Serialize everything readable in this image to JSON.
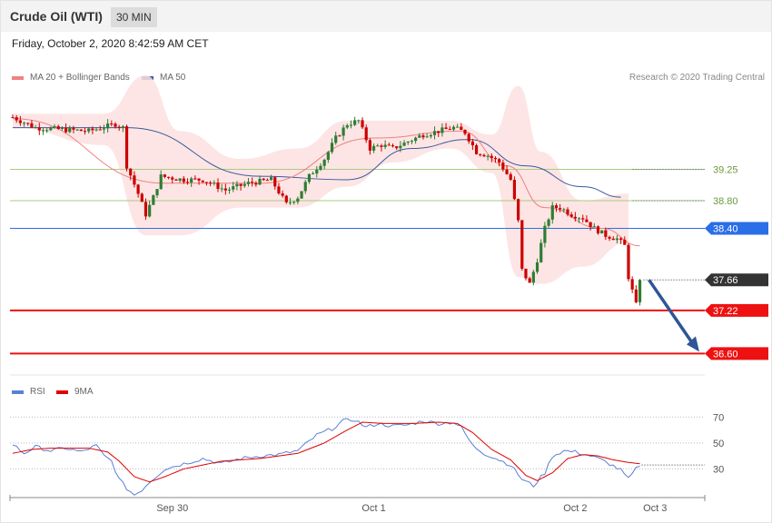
{
  "header": {
    "title": "Crude Oil (WTI)",
    "timeframe": "30 MIN"
  },
  "datetime": "Friday, October 2, 2020 8:42:59 AM CET",
  "legend": {
    "ma20": {
      "label": "MA 20 + Bollinger Bands",
      "color": "#f08080"
    },
    "ma50": {
      "label": "MA 50",
      "color": "#3a5a9c"
    },
    "credit": "Research © 2020 Trading Central"
  },
  "rsi_legend": {
    "rsi": {
      "label": "RSI",
      "color": "#5b7fd6"
    },
    "ma": {
      "label": "9MA",
      "color": "#e00000"
    }
  },
  "colors": {
    "up": "#2e7d32",
    "down": "#cc0000",
    "band": "#fde0e0",
    "arrow": "#2f5597"
  },
  "chart_data": [
    {
      "type": "candlestick",
      "title": "",
      "y_range": [
        36.33,
        40.38
      ],
      "x_ticks": [
        {
          "label": "Sep 30",
          "index": 42
        },
        {
          "label": "Oct 1",
          "index": 95
        },
        {
          "label": "Oct 2",
          "index": 148
        },
        {
          "label": "Oct 3",
          "index": 169
        }
      ],
      "levels": [
        {
          "label": "39.25",
          "value": 39.25,
          "kind": "resistance",
          "color": "#a8cc80",
          "lineWidth": 1
        },
        {
          "label": "38.80",
          "value": 38.8,
          "kind": "resistance",
          "color": "#a8cc80",
          "lineWidth": 1
        },
        {
          "label": "38.40",
          "value": 38.4,
          "kind": "pivot",
          "color": "#2a6ee8",
          "lineWidth": 1
        },
        {
          "label": "37.66",
          "value": 37.66,
          "kind": "last",
          "color": "#333333",
          "lineWidth": 0
        },
        {
          "label": "37.22",
          "value": 37.22,
          "kind": "support",
          "color": "#ee1111",
          "lineWidth": 2
        },
        {
          "label": "36.60",
          "value": 36.6,
          "kind": "support",
          "color": "#ee1111",
          "lineWidth": 2
        }
      ],
      "forecast_arrow": {
        "from_value": 37.66,
        "to_value": 36.6
      },
      "anchors": [
        [
          0,
          40.0
        ],
        [
          6,
          39.85
        ],
        [
          14,
          39.82
        ],
        [
          20,
          39.8
        ],
        [
          27,
          39.9
        ],
        [
          29,
          39.85
        ],
        [
          30,
          39.3
        ],
        [
          33,
          38.9
        ],
        [
          35,
          38.6
        ],
        [
          37,
          38.85
        ],
        [
          39,
          39.15
        ],
        [
          45,
          39.1
        ],
        [
          50,
          39.1
        ],
        [
          56,
          38.95
        ],
        [
          62,
          39.05
        ],
        [
          68,
          39.1
        ],
        [
          72,
          38.75
        ],
        [
          75,
          38.85
        ],
        [
          78,
          39.15
        ],
        [
          82,
          39.4
        ],
        [
          85,
          39.7
        ],
        [
          88,
          39.9
        ],
        [
          91,
          39.95
        ],
        [
          94,
          39.55
        ],
        [
          97,
          39.6
        ],
        [
          100,
          39.55
        ],
        [
          104,
          39.65
        ],
        [
          108,
          39.75
        ],
        [
          112,
          39.8
        ],
        [
          116,
          39.85
        ],
        [
          119,
          39.78
        ],
        [
          122,
          39.5
        ],
        [
          125,
          39.45
        ],
        [
          128,
          39.35
        ],
        [
          131,
          39.1
        ],
        [
          133,
          38.5
        ],
        [
          134,
          37.8
        ],
        [
          136,
          37.6
        ],
        [
          138,
          37.95
        ],
        [
          140,
          38.4
        ],
        [
          142,
          38.7
        ],
        [
          144,
          38.7
        ],
        [
          147,
          38.6
        ],
        [
          150,
          38.55
        ],
        [
          153,
          38.4
        ],
        [
          156,
          38.3
        ],
        [
          159,
          38.25
        ],
        [
          161,
          38.15
        ],
        [
          162,
          37.7
        ],
        [
          164,
          37.3
        ],
        [
          165,
          37.66
        ]
      ],
      "ma20": [
        [
          0,
          39.98
        ],
        [
          40,
          39.05
        ],
        [
          65,
          39.05
        ],
        [
          95,
          39.7
        ],
        [
          118,
          39.8
        ],
        [
          130,
          39.3
        ],
        [
          140,
          38.7
        ],
        [
          155,
          38.4
        ],
        [
          165,
          38.15
        ]
      ],
      "ma50": [
        [
          0,
          39.85
        ],
        [
          30,
          39.85
        ],
        [
          65,
          39.15
        ],
        [
          88,
          39.1
        ],
        [
          105,
          39.55
        ],
        [
          120,
          39.68
        ],
        [
          135,
          39.3
        ],
        [
          150,
          39.0
        ],
        [
          160,
          38.85
        ]
      ],
      "band_upper": [
        [
          0,
          40.05
        ],
        [
          24,
          40.05
        ],
        [
          35,
          40.6
        ],
        [
          44,
          39.8
        ],
        [
          60,
          39.4
        ],
        [
          75,
          39.55
        ],
        [
          88,
          39.95
        ],
        [
          100,
          39.95
        ],
        [
          115,
          39.95
        ],
        [
          126,
          39.75
        ],
        [
          133,
          40.45
        ],
        [
          139,
          39.5
        ],
        [
          150,
          38.8
        ],
        [
          162,
          38.9
        ]
      ],
      "band_lower": [
        [
          0,
          39.85
        ],
        [
          24,
          39.6
        ],
        [
          35,
          38.3
        ],
        [
          44,
          38.3
        ],
        [
          60,
          38.7
        ],
        [
          75,
          38.7
        ],
        [
          88,
          39.0
        ],
        [
          100,
          39.35
        ],
        [
          115,
          39.55
        ],
        [
          126,
          39.2
        ],
        [
          133,
          37.7
        ],
        [
          139,
          37.6
        ],
        [
          150,
          37.85
        ],
        [
          162,
          38.2
        ]
      ]
    },
    {
      "type": "line",
      "title": "RSI",
      "y_range": [
        10,
        80
      ],
      "y_ticks": [
        {
          "label": "70",
          "value": 70
        },
        {
          "label": "50",
          "value": 50
        },
        {
          "label": "30",
          "value": 30
        }
      ],
      "series": [
        {
          "name": "RSI",
          "color": "#5b7fd6",
          "anchors": [
            [
              0,
              49
            ],
            [
              3,
              42
            ],
            [
              6,
              47
            ],
            [
              10,
              44
            ],
            [
              14,
              46
            ],
            [
              18,
              43
            ],
            [
              22,
              48
            ],
            [
              24,
              40
            ],
            [
              26,
              36
            ],
            [
              28,
              22
            ],
            [
              30,
              15
            ],
            [
              32,
              10
            ],
            [
              34,
              14
            ],
            [
              36,
              20
            ],
            [
              40,
              30
            ],
            [
              45,
              34
            ],
            [
              50,
              38
            ],
            [
              55,
              34
            ],
            [
              60,
              38
            ],
            [
              65,
              40
            ],
            [
              70,
              41
            ],
            [
              75,
              44
            ],
            [
              80,
              56
            ],
            [
              84,
              61
            ],
            [
              87,
              67
            ],
            [
              90,
              68
            ],
            [
              93,
              62
            ],
            [
              96,
              65
            ],
            [
              100,
              63
            ],
            [
              104,
              64
            ],
            [
              108,
              67
            ],
            [
              112,
              65
            ],
            [
              116,
              66
            ],
            [
              118,
              62
            ],
            [
              121,
              48
            ],
            [
              124,
              42
            ],
            [
              128,
              37
            ],
            [
              131,
              33
            ],
            [
              134,
              22
            ],
            [
              137,
              17
            ],
            [
              140,
              27
            ],
            [
              142,
              40
            ],
            [
              145,
              44
            ],
            [
              148,
              43
            ],
            [
              151,
              41
            ],
            [
              154,
              38
            ],
            [
              157,
              34
            ],
            [
              160,
              29
            ],
            [
              162,
              22
            ],
            [
              164,
              30
            ],
            [
              165,
              33
            ]
          ]
        },
        {
          "name": "9MA",
          "color": "#e00000",
          "anchors": [
            [
              0,
              42
            ],
            [
              5,
              45
            ],
            [
              10,
              46
            ],
            [
              20,
              46
            ],
            [
              25,
              43
            ],
            [
              28,
              36
            ],
            [
              32,
              24
            ],
            [
              36,
              20
            ],
            [
              40,
              24
            ],
            [
              45,
              30
            ],
            [
              55,
              36
            ],
            [
              65,
              38
            ],
            [
              75,
              42
            ],
            [
              82,
              50
            ],
            [
              88,
              60
            ],
            [
              92,
              66
            ],
            [
              98,
              65
            ],
            [
              105,
              65
            ],
            [
              112,
              66
            ],
            [
              117,
              65
            ],
            [
              121,
              58
            ],
            [
              126,
              45
            ],
            [
              131,
              37
            ],
            [
              135,
              25
            ],
            [
              138,
              21
            ],
            [
              142,
              27
            ],
            [
              146,
              38
            ],
            [
              150,
              41
            ],
            [
              154,
              40
            ],
            [
              158,
              37
            ],
            [
              162,
              35
            ],
            [
              165,
              34
            ]
          ]
        }
      ]
    }
  ]
}
